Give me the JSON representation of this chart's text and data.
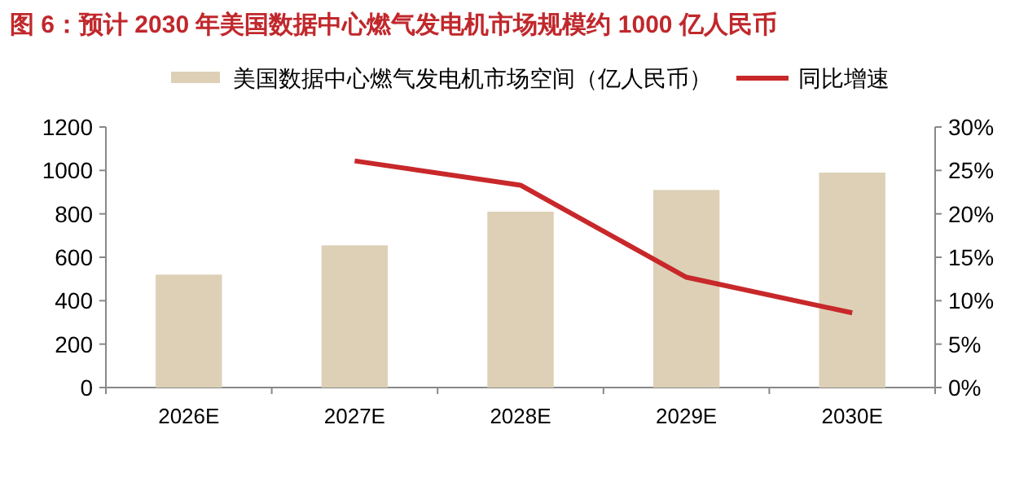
{
  "chart_data": {
    "type": "bar",
    "title": "图 6：预计 2030 年美国数据中心燃气发电机市场规模约 1000 亿人民币",
    "categories": [
      "2026E",
      "2027E",
      "2028E",
      "2029E",
      "2030E"
    ],
    "series": [
      {
        "name": "美国数据中心燃气发电机市场空间（亿人民币）",
        "color": "#ddd0b6",
        "values": [
          520,
          655,
          810,
          910,
          990
        ]
      },
      {
        "name": "同比增速",
        "type": "line",
        "axis": "y2",
        "color": "#c8282a",
        "values": [
          null,
          26.1,
          23.3,
          12.7,
          8.6
        ]
      }
    ],
    "ylim": [
      0,
      1200
    ],
    "yticks": [
      0,
      200,
      400,
      600,
      800,
      1000,
      1200
    ],
    "y2lim": [
      0,
      30
    ],
    "y2ticks": [
      {
        "value": 0,
        "label": "0%"
      },
      {
        "value": 5,
        "label": "5%"
      },
      {
        "value": 10,
        "label": "10%"
      },
      {
        "value": 15,
        "label": "15%"
      },
      {
        "value": 20,
        "label": "20%"
      },
      {
        "value": 25,
        "label": "25%"
      },
      {
        "value": 30,
        "label": "30%"
      }
    ],
    "grid": false,
    "legend": "top",
    "marker": "none"
  }
}
